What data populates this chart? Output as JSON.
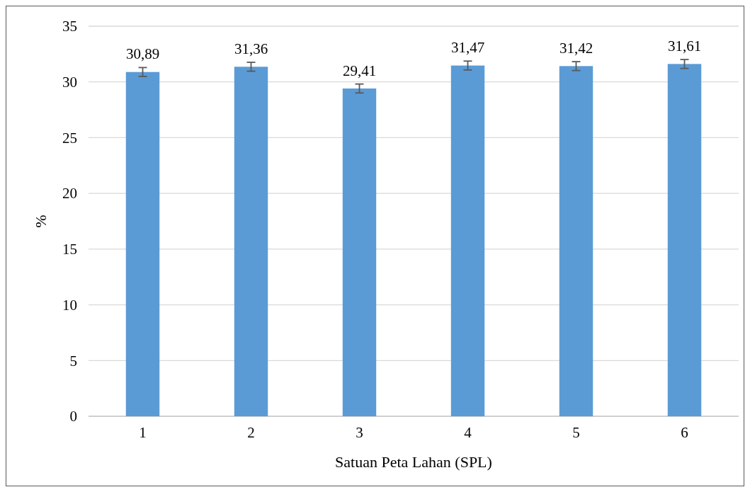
{
  "chart_data": {
    "type": "bar",
    "xlabel": "Satuan Peta Lahan (SPL)",
    "ylabel": "%",
    "categories": [
      "1",
      "2",
      "3",
      "4",
      "5",
      "6"
    ],
    "values": [
      30.89,
      31.36,
      29.41,
      31.47,
      31.42,
      31.61
    ],
    "value_labels": [
      "30,89",
      "31,36",
      "29,41",
      "31,47",
      "31,42",
      "31,61"
    ],
    "errors": [
      0.4,
      0.4,
      0.4,
      0.4,
      0.4,
      0.4
    ],
    "color": "#5b9bd5",
    "ylim": [
      0,
      35
    ],
    "yticks": [
      0,
      5,
      10,
      15,
      20,
      25,
      30,
      35
    ],
    "grid": "y"
  }
}
